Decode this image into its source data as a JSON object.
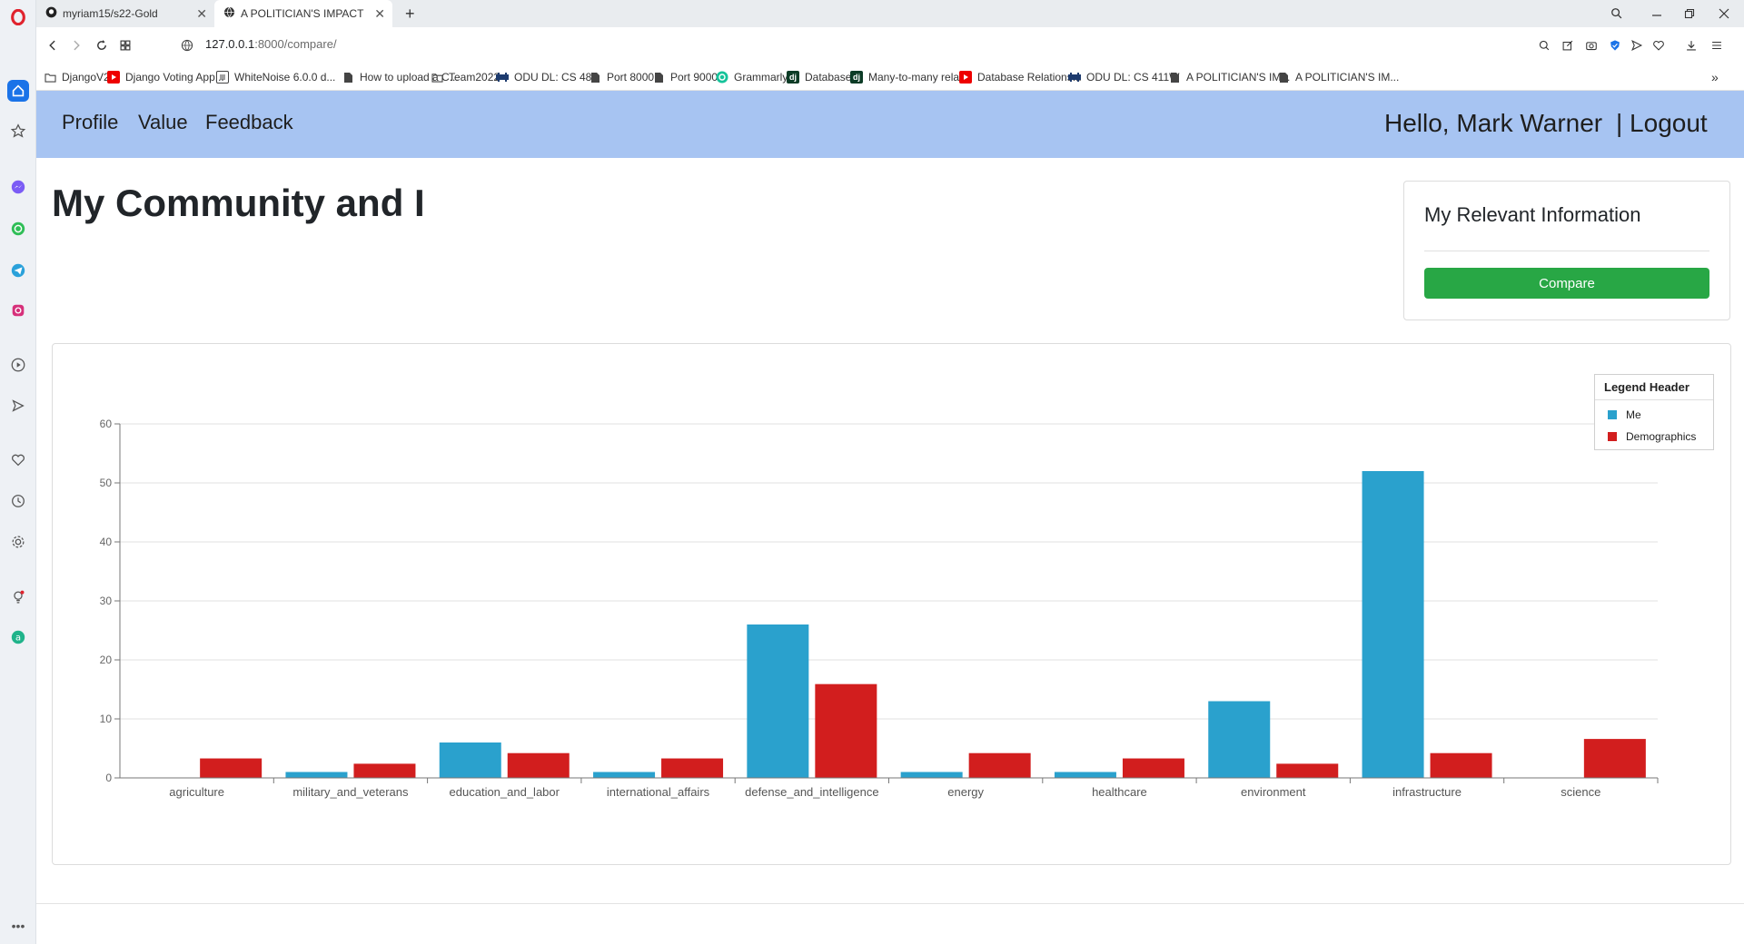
{
  "browser": {
    "tabs": [
      {
        "title": "myriam15/s22-Gold",
        "active": false
      },
      {
        "title": "A POLITICIAN'S IMPACT",
        "active": true
      }
    ],
    "new_tab_glyph": "+",
    "url_host": "127.0.0.1",
    "url_rest": ":8000/compare/",
    "bookmarks": [
      {
        "label": "DjangoV2",
        "icon": "folder-icon"
      },
      {
        "label": "Django Voting App...",
        "icon": "youtube-icon"
      },
      {
        "label": "WhiteNoise 6.0.0 d...",
        "icon": "doc-icon"
      },
      {
        "label": "How to upload a C...",
        "icon": "file-icon"
      },
      {
        "label": "Team2022",
        "icon": "folder-icon"
      },
      {
        "label": "ODU DL: CS 480",
        "icon": "odu-icon"
      },
      {
        "label": "Port 8000",
        "icon": "file-icon"
      },
      {
        "label": "Port 9000",
        "icon": "file-icon"
      },
      {
        "label": "Grammarly",
        "icon": "grammarly-icon"
      },
      {
        "label": "Database",
        "icon": "django-icon"
      },
      {
        "label": "Many-to-many rela...",
        "icon": "django-icon"
      },
      {
        "label": "Database Relations...",
        "icon": "youtube-icon"
      },
      {
        "label": "ODU DL: CS 411W",
        "icon": "odu-icon"
      },
      {
        "label": "A POLITICIAN'S IM...",
        "icon": "file-icon"
      },
      {
        "label": "A POLITICIAN'S IM...",
        "icon": "file-icon"
      }
    ],
    "bookmarks_more": "»"
  },
  "navbar": {
    "links": [
      "Profile",
      "Value",
      "Feedback"
    ],
    "greeting": "Hello, Mark Warner",
    "logout": "| Logout"
  },
  "page": {
    "title": "My Community and I"
  },
  "info_card": {
    "title": "My Relevant Information",
    "button": "Compare"
  },
  "chart_data": {
    "type": "bar",
    "categories": [
      "agriculture",
      "military_and_veterans",
      "education_and_labor",
      "international_affairs",
      "defense_and_intelligence",
      "energy",
      "healthcare",
      "environment",
      "infrastructure",
      "science"
    ],
    "series": [
      {
        "name": "Me",
        "color": "#2aa1cd",
        "values": [
          0,
          1,
          6,
          1,
          26,
          1,
          1,
          13,
          52,
          0
        ]
      },
      {
        "name": "Demographics",
        "color": "#d21e1e",
        "values": [
          3.3,
          2.4,
          4.2,
          3.3,
          15.9,
          4.2,
          3.3,
          2.4,
          4.2,
          6.6
        ]
      }
    ],
    "ylim": [
      0,
      60
    ],
    "yticks": [
      0,
      10,
      20,
      30,
      40,
      50,
      60
    ],
    "grid": true,
    "legend": {
      "header": "Legend Header",
      "placement": "top-right"
    }
  }
}
